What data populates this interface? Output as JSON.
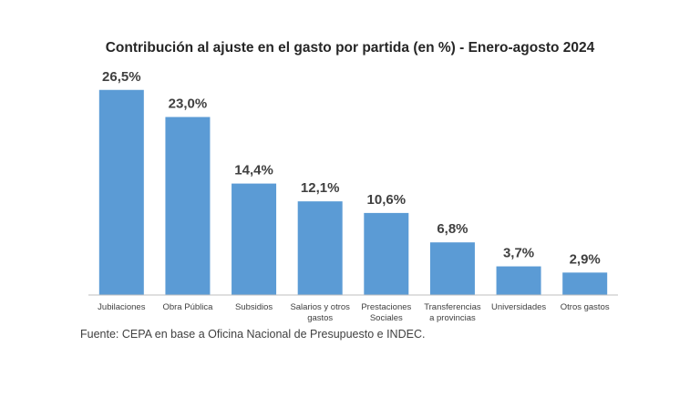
{
  "chart_data": {
    "type": "bar",
    "title": "Contribución al ajuste en el gasto por partida (en %) - Enero-agosto 2024",
    "xlabel": "",
    "ylabel": "",
    "ylim": [
      0,
      28
    ],
    "grid": false,
    "categories": [
      [
        "Jubilaciones"
      ],
      [
        "Obra Pública"
      ],
      [
        "Subsidios"
      ],
      [
        "Salarios y otros",
        "gastos"
      ],
      [
        "Prestaciones",
        "Sociales"
      ],
      [
        "Transferencias",
        "a provincias"
      ],
      [
        "Universidades"
      ],
      [
        "Otros gastos"
      ]
    ],
    "values": [
      26.5,
      23.0,
      14.4,
      12.1,
      10.6,
      6.8,
      3.7,
      2.9
    ],
    "value_labels": [
      "26,5%",
      "23,0%",
      "14,4%",
      "12,1%",
      "10,6%",
      "6,8%",
      "3,7%",
      "2,9%"
    ],
    "bar_color": "#5b9bd5",
    "axis_color": "#bfbfbf"
  },
  "source": "Fuente: CEPA en base a Oficina Nacional de Presupuesto e INDEC."
}
